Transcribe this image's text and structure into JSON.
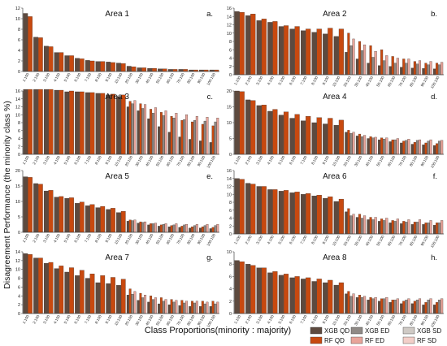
{
  "figure": {
    "ylabel": "Disagreement Performance (the minority class %)",
    "xlabel": "Class Proportions(minority : majority)"
  },
  "legend": {
    "items": [
      {
        "label": "XGB QD",
        "color": "#5d4a3f"
      },
      {
        "label": "XGB ED",
        "color": "#8f8a86"
      },
      {
        "label": "XGB SD",
        "color": "#cfcac5"
      },
      {
        "label": "RF QD",
        "color": "#c8490f"
      },
      {
        "label": "RF ED",
        "color": "#e8a49a"
      },
      {
        "label": "RF SD",
        "color": "#f3cfc9"
      }
    ]
  },
  "chart_data": [
    {
      "type": "bar",
      "title": "Area 1",
      "letter": "a.",
      "categories": [
        "1:100",
        "2:100",
        "3:100",
        "4:100",
        "5:100",
        "6:100",
        "7:100",
        "8:100",
        "9:100",
        "10:100",
        "20:100",
        "30:100",
        "40:100",
        "50:100",
        "60:100",
        "70:100",
        "80:100",
        "90:100",
        "100:100"
      ],
      "ylim": [
        0,
        12
      ],
      "yticks": [
        0,
        2,
        4,
        6,
        8,
        10,
        12
      ],
      "series": [
        {
          "name": "XGB QD",
          "values": [
            11.0,
            6.5,
            4.8,
            3.6,
            3.0,
            2.5,
            2.1,
            1.9,
            1.8,
            1.6,
            1.0,
            0.7,
            0.6,
            0.5,
            0.4,
            0.4,
            0.3,
            0.3,
            0.3
          ]
        },
        {
          "name": "RF QD",
          "values": [
            10.4,
            6.4,
            4.7,
            3.6,
            3.0,
            2.4,
            2.0,
            1.9,
            1.7,
            1.5,
            0.9,
            0.7,
            0.6,
            0.5,
            0.4,
            0.4,
            0.3,
            0.3,
            0.3
          ]
        }
      ]
    },
    {
      "type": "bar",
      "title": "Area 2",
      "letter": "b.",
      "categories": [
        "1:100",
        "2:100",
        "3:100",
        "4:100",
        "5:100",
        "6:100",
        "7:100",
        "8:100",
        "9:100",
        "10:100",
        "20:100",
        "30:100",
        "40:100",
        "50:100",
        "60:100",
        "70:100",
        "80:100",
        "90:100",
        "100:100"
      ],
      "ylim": [
        0,
        16
      ],
      "yticks": [
        0,
        2,
        4,
        6,
        8,
        10,
        12,
        14,
        16
      ],
      "series": [
        {
          "name": "XGB QD",
          "values": [
            15.2,
            14.2,
            13.0,
            12.6,
            11.6,
            11.0,
            10.6,
            10.2,
            9.8,
            9.2,
            5.4,
            3.8,
            2.8,
            2.2,
            2.0,
            1.8,
            1.6,
            1.5,
            1.4
          ]
        },
        {
          "name": "RF QD",
          "values": [
            15.0,
            14.6,
            13.4,
            12.8,
            11.8,
            11.6,
            11.0,
            11.0,
            11.2,
            11.0,
            10.0,
            8.0,
            7.0,
            6.0,
            4.4,
            3.8,
            3.2,
            2.8,
            2.8
          ]
        },
        {
          "name": "XGB ED",
          "values": [
            null,
            null,
            null,
            null,
            null,
            null,
            null,
            null,
            null,
            null,
            7.0,
            5.8,
            4.2,
            3.4,
            2.8,
            2.8,
            2.6,
            2.4,
            2.4
          ]
        },
        {
          "name": "RF ED",
          "values": [
            null,
            null,
            null,
            null,
            null,
            null,
            null,
            null,
            null,
            null,
            8.6,
            7.2,
            5.6,
            4.6,
            4.0,
            3.8,
            3.4,
            3.2,
            3.0
          ]
        }
      ]
    },
    {
      "type": "bar",
      "title": "Area 3",
      "letter": "c.",
      "categories": [
        "1:100",
        "2:100",
        "3:100",
        "4:100",
        "5:100",
        "6:100",
        "7:100",
        "8:100",
        "9:100",
        "10:100",
        "20:100",
        "30:100",
        "40:100",
        "50:100",
        "60:100",
        "70:100",
        "80:100",
        "90:100",
        "100:100"
      ],
      "ylim": [
        0,
        16
      ],
      "yticks": [
        0,
        2,
        4,
        6,
        8,
        10,
        12,
        14,
        16
      ],
      "series": [
        {
          "name": "XGB QD",
          "values": [
            16.4,
            16.4,
            16.4,
            16.2,
            15.8,
            15.8,
            15.6,
            15.4,
            15.0,
            14.6,
            12.0,
            11.0,
            9.0,
            7.0,
            5.6,
            4.4,
            3.8,
            3.4,
            3.0
          ]
        },
        {
          "name": "RF QD",
          "values": [
            16.4,
            16.4,
            16.4,
            16.2,
            16.0,
            15.8,
            15.6,
            15.4,
            15.2,
            15.0,
            13.4,
            12.8,
            11.4,
            10.6,
            9.6,
            8.6,
            8.2,
            7.6,
            7.2
          ]
        },
        {
          "name": "XGB ED",
          "values": [
            null,
            null,
            null,
            null,
            null,
            null,
            null,
            null,
            null,
            null,
            12.8,
            11.6,
            10.4,
            9.8,
            9.2,
            8.8,
            8.6,
            8.4,
            8.2
          ]
        },
        {
          "name": "RF ED",
          "values": [
            null,
            null,
            null,
            null,
            null,
            null,
            null,
            null,
            null,
            null,
            13.6,
            12.6,
            11.8,
            11.0,
            10.4,
            10.0,
            9.6,
            9.4,
            9.2
          ]
        }
      ]
    },
    {
      "type": "bar",
      "title": "Area 4",
      "letter": "d.",
      "categories": [
        "1:100",
        "2:100",
        "3:100",
        "4:100",
        "5:100",
        "6:100",
        "7:100",
        "8:100",
        "9:100",
        "10:100",
        "20:100",
        "30:100",
        "40:100",
        "50:100",
        "60:100",
        "70:100",
        "80:100",
        "90:100",
        "100:100"
      ],
      "ylim": [
        0,
        20
      ],
      "yticks": [
        0,
        5,
        10,
        15,
        20
      ],
      "series": [
        {
          "name": "XGB QD",
          "values": [
            20.0,
            17.2,
            15.4,
            13.6,
            12.4,
            11.4,
            10.6,
            10.0,
            9.6,
            9.2,
            7.0,
            5.8,
            5.0,
            4.6,
            4.0,
            3.6,
            3.2,
            3.0,
            2.8
          ]
        },
        {
          "name": "RF QD",
          "values": [
            19.8,
            17.0,
            15.6,
            14.2,
            13.4,
            12.6,
            12.0,
            11.6,
            11.4,
            10.8,
            7.6,
            6.4,
            5.6,
            5.2,
            4.6,
            4.2,
            3.8,
            3.6,
            3.4
          ]
        },
        {
          "name": "XGB ED",
          "values": [
            null,
            null,
            null,
            null,
            null,
            null,
            null,
            null,
            null,
            null,
            6.6,
            5.6,
            5.2,
            4.8,
            4.6,
            4.4,
            4.4,
            4.2,
            4.2
          ]
        },
        {
          "name": "RF ED",
          "values": [
            null,
            null,
            null,
            null,
            null,
            null,
            null,
            null,
            null,
            null,
            7.0,
            6.0,
            5.4,
            5.2,
            5.0,
            4.8,
            4.6,
            4.6,
            4.4
          ]
        }
      ]
    },
    {
      "type": "bar",
      "title": "Area 5",
      "letter": "e.",
      "categories": [
        "1:100",
        "2:100",
        "3:100",
        "4:100",
        "5:100",
        "6:100",
        "7:100",
        "8:100",
        "9:100",
        "10:100",
        "20:100",
        "30:100",
        "40:100",
        "50:100",
        "60:100",
        "70:100",
        "80:100",
        "90:100",
        "100:100"
      ],
      "ylim": [
        0,
        20
      ],
      "yticks": [
        0,
        5,
        10,
        15,
        20
      ],
      "series": [
        {
          "name": "XGB QD",
          "values": [
            18.0,
            15.8,
            13.4,
            11.4,
            11.0,
            9.4,
            8.6,
            8.0,
            7.4,
            6.4,
            3.6,
            3.0,
            2.4,
            2.0,
            1.8,
            1.6,
            1.4,
            1.4,
            1.2
          ]
        },
        {
          "name": "RF QD",
          "values": [
            17.8,
            15.6,
            13.6,
            11.6,
            11.2,
            9.8,
            9.0,
            8.4,
            7.8,
            6.8,
            4.0,
            3.4,
            2.8,
            2.4,
            2.2,
            2.0,
            1.8,
            1.8,
            1.6
          ]
        },
        {
          "name": "XGB ED",
          "values": [
            null,
            null,
            null,
            null,
            null,
            null,
            null,
            null,
            null,
            null,
            3.8,
            3.2,
            2.8,
            2.6,
            2.4,
            2.4,
            2.2,
            2.2,
            2.2
          ]
        },
        {
          "name": "RF ED",
          "values": [
            null,
            null,
            null,
            null,
            null,
            null,
            null,
            null,
            null,
            null,
            4.0,
            3.4,
            3.0,
            2.8,
            2.8,
            2.6,
            2.6,
            2.6,
            2.6
          ]
        }
      ]
    },
    {
      "type": "bar",
      "title": "Area 6",
      "letter": "f.",
      "categories": [
        "1:100",
        "2:100",
        "3:100",
        "4:100",
        "5:100",
        "6:100",
        "7:100",
        "8:100",
        "9:100",
        "10:100",
        "20:100",
        "30:100",
        "40:100",
        "50:100",
        "60:100",
        "70:100",
        "80:100",
        "90:100",
        "100:100"
      ],
      "ylim": [
        0,
        16
      ],
      "yticks": [
        0,
        2,
        4,
        6,
        8,
        10,
        12,
        14,
        16
      ],
      "series": [
        {
          "name": "XGB QD",
          "values": [
            14.0,
            12.8,
            12.0,
            11.2,
            10.8,
            10.4,
            10.0,
            9.6,
            9.0,
            8.2,
            5.6,
            4.2,
            3.6,
            3.2,
            2.8,
            2.6,
            2.4,
            2.4,
            2.2
          ]
        },
        {
          "name": "RF QD",
          "values": [
            13.8,
            12.6,
            12.0,
            11.2,
            11.0,
            10.6,
            10.2,
            9.8,
            9.4,
            8.8,
            6.4,
            5.0,
            4.2,
            3.8,
            3.4,
            3.2,
            3.0,
            2.8,
            2.8
          ]
        },
        {
          "name": "XGB ED",
          "values": [
            null,
            null,
            null,
            null,
            null,
            null,
            null,
            null,
            null,
            null,
            4.6,
            4.0,
            3.6,
            3.4,
            3.2,
            3.0,
            3.0,
            2.8,
            2.8
          ]
        },
        {
          "name": "RF ED",
          "values": [
            null,
            null,
            null,
            null,
            null,
            null,
            null,
            null,
            null,
            null,
            5.0,
            4.6,
            4.2,
            4.0,
            3.8,
            3.6,
            3.6,
            3.4,
            3.4
          ]
        }
      ]
    },
    {
      "type": "bar",
      "title": "Area 7",
      "letter": "g.",
      "categories": [
        "1:100",
        "2:100",
        "3:100",
        "4:100",
        "5:100",
        "6:100",
        "7:100",
        "8:100",
        "9:100",
        "10:100",
        "20:100",
        "30:100",
        "40:100",
        "50:100",
        "60:100",
        "70:100",
        "80:100",
        "90:100",
        "100:100"
      ],
      "ylim": [
        0,
        14
      ],
      "yticks": [
        0,
        2,
        4,
        6,
        8,
        10,
        12,
        14
      ],
      "series": [
        {
          "name": "XGB QD",
          "values": [
            13.6,
            12.6,
            11.4,
            10.2,
            9.4,
            8.6,
            8.0,
            7.0,
            6.8,
            6.4,
            4.2,
            3.0,
            2.6,
            2.2,
            2.0,
            1.8,
            1.6,
            1.6,
            1.6
          ]
        },
        {
          "name": "RF QD",
          "values": [
            13.4,
            12.6,
            11.6,
            10.8,
            10.4,
            9.8,
            9.0,
            8.6,
            8.2,
            7.8,
            5.6,
            4.6,
            4.0,
            3.6,
            3.2,
            3.0,
            2.8,
            2.8,
            2.8
          ]
        },
        {
          "name": "XGB ED",
          "values": [
            null,
            null,
            null,
            null,
            null,
            null,
            null,
            null,
            null,
            null,
            4.4,
            3.6,
            3.2,
            2.8,
            2.6,
            2.4,
            2.4,
            2.2,
            2.2
          ]
        },
        {
          "name": "RF ED",
          "values": [
            null,
            null,
            null,
            null,
            null,
            null,
            null,
            null,
            null,
            null,
            5.0,
            4.2,
            3.6,
            3.2,
            3.0,
            2.8,
            2.8,
            2.6,
            2.6
          ]
        }
      ]
    },
    {
      "type": "bar",
      "title": "Area 8",
      "letter": "h.",
      "categories": [
        "1:100",
        "2:100",
        "3:100",
        "4:100",
        "5:100",
        "6:100",
        "7:100",
        "8:100",
        "9:100",
        "10:100",
        "20:100",
        "30:100",
        "40:100",
        "50:100",
        "60:100",
        "70:100",
        "80:100",
        "90:100",
        "100:100"
      ],
      "ylim": [
        0,
        10
      ],
      "yticks": [
        0,
        2,
        4,
        6,
        8,
        10
      ],
      "series": [
        {
          "name": "XGB QD",
          "values": [
            8.6,
            8.0,
            7.4,
            6.6,
            6.2,
            5.8,
            5.6,
            5.2,
            5.0,
            4.6,
            3.2,
            2.6,
            2.2,
            2.0,
            1.8,
            1.6,
            1.6,
            1.4,
            1.4
          ]
        },
        {
          "name": "RF QD",
          "values": [
            8.4,
            7.8,
            7.4,
            6.8,
            6.4,
            6.0,
            5.8,
            5.6,
            5.4,
            5.0,
            3.6,
            3.0,
            2.6,
            2.4,
            2.2,
            2.0,
            2.0,
            1.8,
            1.8
          ]
        },
        {
          "name": "XGB ED",
          "values": [
            null,
            null,
            null,
            null,
            null,
            null,
            null,
            null,
            null,
            null,
            2.8,
            2.6,
            2.4,
            2.4,
            2.2,
            2.2,
            2.2,
            2.2,
            2.2
          ]
        },
        {
          "name": "RF ED",
          "values": [
            null,
            null,
            null,
            null,
            null,
            null,
            null,
            null,
            null,
            null,
            3.2,
            2.8,
            2.6,
            2.6,
            2.4,
            2.4,
            2.4,
            2.4,
            2.4
          ]
        }
      ]
    }
  ]
}
